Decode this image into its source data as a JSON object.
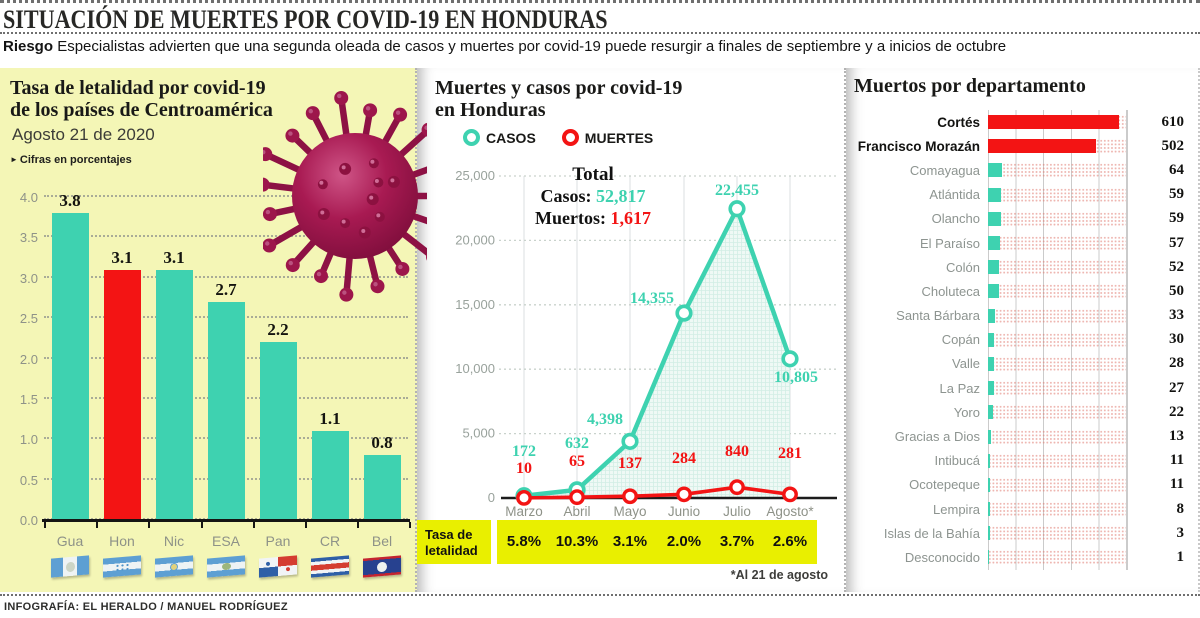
{
  "header": {
    "title": "SITUACIÓN DE MUERTES POR COVID-19 EN HONDURAS",
    "kicker": "Riesgo",
    "subtitle": "Especialistas advierten que una segunda oleada de casos y muertes por covid-19 puede resurgir a finales de septiembre y a inicios de octubre"
  },
  "colors": {
    "teal": "#3ed2b0",
    "red": "#f31414",
    "panel_yellow": "#f4f6b6",
    "cell_yellow": "#e9ef00",
    "label_gray": "#8e9288",
    "ink": "#1d1d1b"
  },
  "left_panel": {
    "title_line1": "Tasa de letalidad por covid-19",
    "title_line2": "de los países de Centroamérica",
    "date": "Agosto 21 de 2020",
    "note_bullet": "►",
    "note": "Cifras en porcentajes"
  },
  "middle_panel": {
    "title_line1": "Muertes y casos por covid-19",
    "title_line2": "en Honduras",
    "legend": [
      {
        "label": "CASOS",
        "color": "#3ed2b0"
      },
      {
        "label": "MUERTES",
        "color": "#f31414"
      }
    ],
    "totals": {
      "title": "Total",
      "casos_label": "Casos:",
      "casos_value": "52,817",
      "muertos_label": "Muertos:",
      "muertos_value": "1,617"
    },
    "tasa": {
      "label": "Tasa de letalidad",
      "values": [
        "5.8%",
        "10.3%",
        "3.1%",
        "2.0%",
        "3.7%",
        "2.6%"
      ]
    },
    "footnote": "*Al 21 de agosto"
  },
  "right_panel": {
    "title": "Muertos por departamento"
  },
  "footer": {
    "credit": "INFOGRAFÍA: EL HERALDO / MANUEL RODRÍGUEZ"
  },
  "chart_data": [
    {
      "type": "bar",
      "title": "Tasa de letalidad por covid-19 de los países de Centroamérica",
      "categories": [
        "Gua",
        "Hon",
        "Nic",
        "ESA",
        "Pan",
        "CR",
        "Bel"
      ],
      "values": [
        3.8,
        3.1,
        3.1,
        2.7,
        2.2,
        1.1,
        0.8
      ],
      "highlight_index": 1,
      "ylim": [
        0,
        4.0
      ],
      "yticks": [
        0.0,
        0.5,
        1.0,
        1.5,
        2.0,
        2.5,
        3.0,
        3.5,
        4.0
      ],
      "grid": true,
      "flags": [
        "guatemala",
        "honduras",
        "nicaragua",
        "elsalvador",
        "panama",
        "costarica",
        "belize"
      ]
    },
    {
      "type": "line",
      "title": "Muertes y casos por covid-19 en Honduras",
      "x": [
        "Marzo",
        "Abril",
        "Mayo",
        "Junio",
        "Julio",
        "Agosto*"
      ],
      "series": [
        {
          "name": "CASOS",
          "color": "#3ed2b0",
          "values": [
            172,
            632,
            4398,
            14355,
            22455,
            10805
          ],
          "labels": [
            "172",
            "632",
            "4,398",
            "14,355",
            "22,455",
            "10,805"
          ]
        },
        {
          "name": "MUERTES",
          "color": "#f31414",
          "values": [
            10,
            65,
            137,
            284,
            840,
            281
          ],
          "labels": [
            "10",
            "65",
            "137",
            "284",
            "840",
            "281"
          ]
        }
      ],
      "ylim": [
        0,
        25000
      ],
      "yticks": [
        "0",
        "5,000",
        "10,000",
        "15,000",
        "20,000",
        "25,000"
      ],
      "grid": true,
      "legend_position": "top"
    },
    {
      "type": "bar",
      "orientation": "horizontal",
      "title": "Muertos por departamento",
      "xlim": [
        0,
        642
      ],
      "rows": [
        {
          "label": "Cortés",
          "value": 610,
          "highlight": true
        },
        {
          "label": "Francisco Morazán",
          "value": 502,
          "highlight": true
        },
        {
          "label": "Comayagua",
          "value": 64
        },
        {
          "label": "Atlántida",
          "value": 59
        },
        {
          "label": "Olancho",
          "value": 59
        },
        {
          "label": "El Paraíso",
          "value": 57
        },
        {
          "label": "Colón",
          "value": 52
        },
        {
          "label": "Choluteca",
          "value": 50
        },
        {
          "label": "Santa Bárbara",
          "value": 33
        },
        {
          "label": "Copán",
          "value": 30
        },
        {
          "label": "Valle",
          "value": 28
        },
        {
          "label": "La Paz",
          "value": 27
        },
        {
          "label": "Yoro",
          "value": 22
        },
        {
          "label": "Gracias a Dios",
          "value": 13
        },
        {
          "label": "Intibucá",
          "value": 11
        },
        {
          "label": "Ocotepeque",
          "value": 11
        },
        {
          "label": "Lempira",
          "value": 8
        },
        {
          "label": "Islas de la Bahía",
          "value": 3
        },
        {
          "label": "Desconocido",
          "value": 1
        }
      ]
    }
  ]
}
